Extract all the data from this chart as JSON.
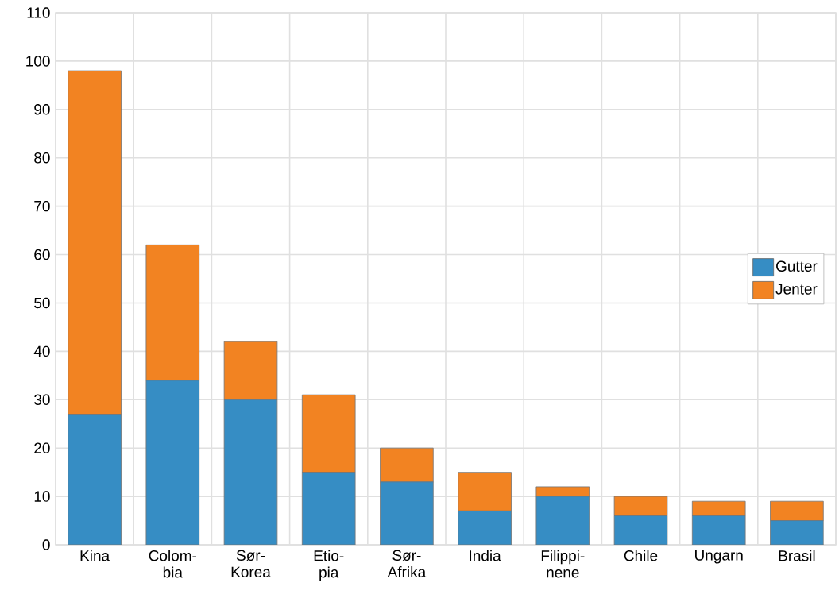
{
  "chart_data": {
    "type": "bar",
    "stacked": true,
    "categories": [
      "Kina",
      "Colom- bia",
      "Sør- Korea",
      "Etio- pia",
      "Sør- Afrika",
      "India",
      "Filippi- nene",
      "Chile",
      "Ungarn",
      "Brasil"
    ],
    "series": [
      {
        "name": "Gutter",
        "color": "#368dc4",
        "values": [
          27,
          34,
          30,
          15,
          13,
          7,
          10,
          6,
          6,
          5
        ]
      },
      {
        "name": "Jenter",
        "color": "#f28322",
        "values": [
          71,
          28,
          12,
          16,
          7,
          8,
          2,
          4,
          3,
          4
        ]
      }
    ],
    "ylim": [
      0,
      110
    ],
    "yticks": [
      0,
      10,
      20,
      30,
      40,
      50,
      60,
      70,
      80,
      90,
      100,
      110
    ],
    "grid": true,
    "legend": "right"
  }
}
